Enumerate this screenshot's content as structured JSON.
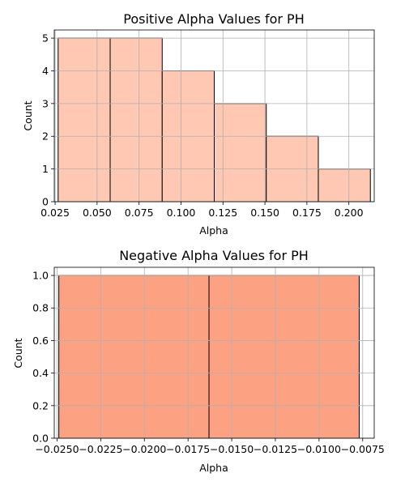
{
  "chart_data": [
    {
      "type": "bar",
      "title": "Positive Alpha Values for PH",
      "xlabel": "Alpha",
      "ylabel": "Count",
      "bin_edges": [
        0.0268,
        0.0578,
        0.0888,
        0.1198,
        0.1508,
        0.1818,
        0.2128
      ],
      "values": [
        5,
        5,
        4,
        3,
        2,
        1
      ],
      "xlim": [
        0.0245,
        0.2151
      ],
      "ylim": [
        0,
        5.25
      ],
      "xticks": [
        0.025,
        0.05,
        0.075,
        0.1,
        0.125,
        0.15,
        0.175,
        0.2
      ],
      "xtick_labels": [
        "0.025",
        "0.050",
        "0.075",
        "0.100",
        "0.125",
        "0.150",
        "0.175",
        "0.200"
      ],
      "yticks": [
        0,
        1,
        2,
        3,
        4,
        5
      ],
      "ytick_labels": [
        "0",
        "1",
        "2",
        "3",
        "4",
        "5"
      ],
      "bar_color": "#fec8b2",
      "edge_color": "#000000",
      "grid": true
    },
    {
      "type": "bar",
      "title": "Negative Alpha Values for PH",
      "xlabel": "Alpha",
      "ylabel": "Count",
      "bin_edges": [
        -0.0249,
        -0.0163,
        -0.0077
      ],
      "values": [
        1,
        1
      ],
      "xlim": [
        -0.02516,
        -0.00684
      ],
      "ylim": [
        0,
        1.05
      ],
      "xticks": [
        -0.025,
        -0.0225,
        -0.02,
        -0.0175,
        -0.015,
        -0.0125,
        -0.01,
        -0.0075
      ],
      "xtick_labels": [
        "−0.0250",
        "−0.0225",
        "−0.0200",
        "−0.0175",
        "−0.0150",
        "−0.0125",
        "−0.0100",
        "−0.0075"
      ],
      "yticks": [
        0,
        0.2,
        0.4,
        0.6,
        0.8,
        1.0
      ],
      "ytick_labels": [
        "0.0",
        "0.2",
        "0.4",
        "0.6",
        "0.8",
        "1.0"
      ],
      "bar_color": "#fca283",
      "edge_color": "#000000",
      "grid": true
    }
  ]
}
